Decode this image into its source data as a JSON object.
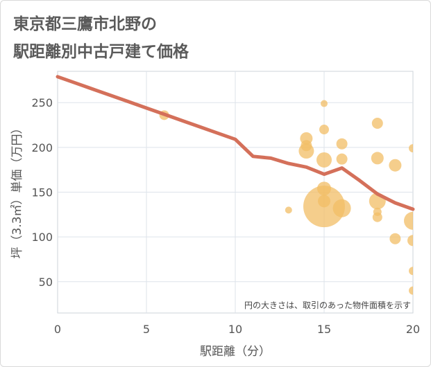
{
  "header": {
    "title_line1": "東京都三鷹市北野の",
    "title_line2": "駅距離別中古戸建て価格"
  },
  "chart_data": {
    "type": "scatter",
    "title": "東京都三鷹市北野の駅距離別中古戸建て価格",
    "xlabel": "駅距離（分）",
    "ylabel": "坪（3.3㎡）単価（万円）",
    "xlim": [
      0,
      20
    ],
    "ylim": [
      15,
      285
    ],
    "xticks": [
      0,
      5,
      10,
      15,
      20
    ],
    "yticks": [
      50,
      100,
      150,
      200,
      250
    ],
    "grid": true,
    "note": "円の大きさは、取引のあった物件面積を示す",
    "colors": {
      "bubble": "#f2bd66",
      "trend": "#d4705a",
      "grid": "#dde3ea"
    },
    "bubbles": [
      {
        "x": 6,
        "y": 236,
        "size": 7
      },
      {
        "x": 13,
        "y": 130,
        "size": 5
      },
      {
        "x": 14,
        "y": 210,
        "size": 9
      },
      {
        "x": 14,
        "y": 202,
        "size": 8
      },
      {
        "x": 14,
        "y": 196,
        "size": 11
      },
      {
        "x": 15,
        "y": 249,
        "size": 5
      },
      {
        "x": 15,
        "y": 220,
        "size": 7
      },
      {
        "x": 15,
        "y": 186,
        "size": 11
      },
      {
        "x": 15,
        "y": 154,
        "size": 10
      },
      {
        "x": 15,
        "y": 140,
        "size": 9
      },
      {
        "x": 15,
        "y": 134,
        "size": 30
      },
      {
        "x": 16,
        "y": 204,
        "size": 8
      },
      {
        "x": 16,
        "y": 187,
        "size": 8
      },
      {
        "x": 16,
        "y": 132,
        "size": 13
      },
      {
        "x": 18,
        "y": 227,
        "size": 8
      },
      {
        "x": 18,
        "y": 188,
        "size": 9
      },
      {
        "x": 18,
        "y": 140,
        "size": 12
      },
      {
        "x": 18,
        "y": 128,
        "size": 6
      },
      {
        "x": 18,
        "y": 122,
        "size": 7
      },
      {
        "x": 19,
        "y": 180,
        "size": 9
      },
      {
        "x": 19,
        "y": 98,
        "size": 8
      },
      {
        "x": 20,
        "y": 199,
        "size": 6
      },
      {
        "x": 20,
        "y": 118,
        "size": 13
      },
      {
        "x": 20,
        "y": 96,
        "size": 8
      },
      {
        "x": 20,
        "y": 62,
        "size": 6
      },
      {
        "x": 20,
        "y": 40,
        "size": 6
      }
    ],
    "trend_line": {
      "x": [
        0,
        1,
        2,
        3,
        4,
        5,
        6,
        7,
        8,
        9,
        10,
        11,
        12,
        13,
        14,
        15,
        16,
        17,
        18,
        19,
        20
      ],
      "y": [
        279,
        272,
        265,
        258,
        251,
        244,
        237,
        230,
        223,
        216,
        209,
        190,
        188,
        182,
        178,
        170,
        177,
        163,
        148,
        138,
        131
      ]
    }
  }
}
